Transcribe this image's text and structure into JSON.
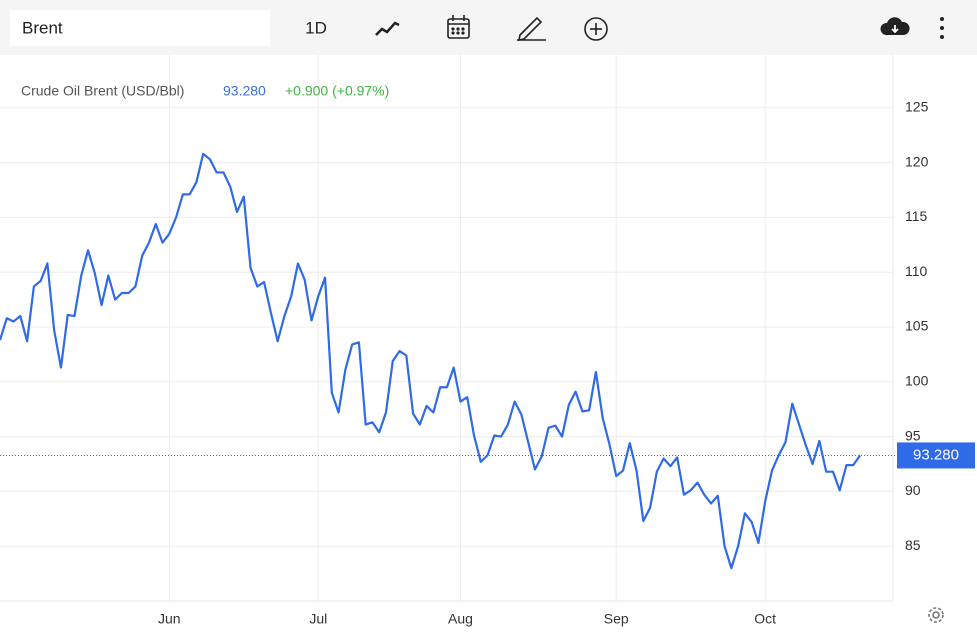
{
  "toolbar": {
    "search": "Brent",
    "interval": "1D"
  },
  "chart_data": {
    "type": "line",
    "legend": {
      "name": "Crude Oil Brent (USD/Bbl)",
      "price": "93.280",
      "change": "+0.900 (+0.97%)"
    },
    "categories": [
      null,
      null,
      null,
      null,
      null,
      null,
      null,
      null,
      null,
      null,
      null,
      null,
      null,
      null,
      null,
      null,
      null,
      null,
      null,
      null,
      null,
      null,
      null,
      null,
      null,
      "Jun",
      null,
      null,
      null,
      null,
      null,
      null,
      null,
      null,
      null,
      null,
      null,
      null,
      null,
      null,
      null,
      null,
      null,
      null,
      null,
      null,
      null,
      "Jul",
      null,
      null,
      null,
      null,
      null,
      null,
      null,
      null,
      null,
      null,
      null,
      null,
      null,
      null,
      null,
      null,
      null,
      null,
      null,
      null,
      "Aug",
      null,
      null,
      null,
      null,
      null,
      null,
      null,
      null,
      null,
      null,
      null,
      null,
      null,
      null,
      null,
      null,
      null,
      null,
      null,
      null,
      null,
      null,
      "Sep",
      null,
      null,
      null,
      null,
      null,
      null,
      null,
      null,
      null,
      null,
      null,
      null,
      null,
      null,
      null,
      null,
      null,
      null,
      null,
      null,
      null,
      "Oct",
      null,
      null,
      null,
      null,
      null,
      null,
      null,
      null,
      null,
      null,
      null,
      null,
      null,
      null
    ],
    "series": [
      {
        "name": "Crude Oil Brent (USD/Bbl)",
        "color": "#2f6ae8",
        "values": [
          103.8,
          105.8,
          105.5,
          106.0,
          103.7,
          108.7,
          109.2,
          110.8,
          104.7,
          101.3,
          106.1,
          106.0,
          109.7,
          112.0,
          109.9,
          107.0,
          109.7,
          107.5,
          108.1,
          108.1,
          108.7,
          111.5,
          112.7,
          114.4,
          112.7,
          113.5,
          115.0,
          117.1,
          117.1,
          118.2,
          120.8,
          120.3,
          119.1,
          119.1,
          117.8,
          115.5,
          116.9,
          110.4,
          108.7,
          109.1,
          106.3,
          103.7,
          106.0,
          107.8,
          110.8,
          109.3,
          105.6,
          107.8,
          109.5,
          99.0,
          97.2,
          101.1,
          103.4,
          103.6,
          96.1,
          96.3,
          95.4,
          97.2,
          101.9,
          102.8,
          102.4,
          97.1,
          96.1,
          97.8,
          97.2,
          99.5,
          99.5,
          101.3,
          98.2,
          98.6,
          95.1,
          92.7,
          93.3,
          95.1,
          95.0,
          96.1,
          98.2,
          97.0,
          94.5,
          92.0,
          93.2,
          95.8,
          96.0,
          95.0,
          97.9,
          99.1,
          97.3,
          97.4,
          100.9,
          96.7,
          94.3,
          91.4,
          91.9,
          94.4,
          91.9,
          87.3,
          88.5,
          91.8,
          93.0,
          92.3,
          93.1,
          89.7,
          90.1,
          90.8,
          89.7,
          88.9,
          89.6,
          85.0,
          83.0,
          85.0,
          88.0,
          87.2,
          85.3,
          89.1,
          91.9,
          93.3,
          94.5,
          98.0,
          96.1,
          94.2,
          92.5,
          94.6,
          91.8,
          91.8,
          90.1,
          92.4,
          92.4,
          93.28
        ]
      }
    ],
    "ylim": [
      80,
      130
    ],
    "yticks": [
      85,
      90,
      95,
      100,
      105,
      110,
      115,
      120,
      125
    ],
    "grid": true
  }
}
